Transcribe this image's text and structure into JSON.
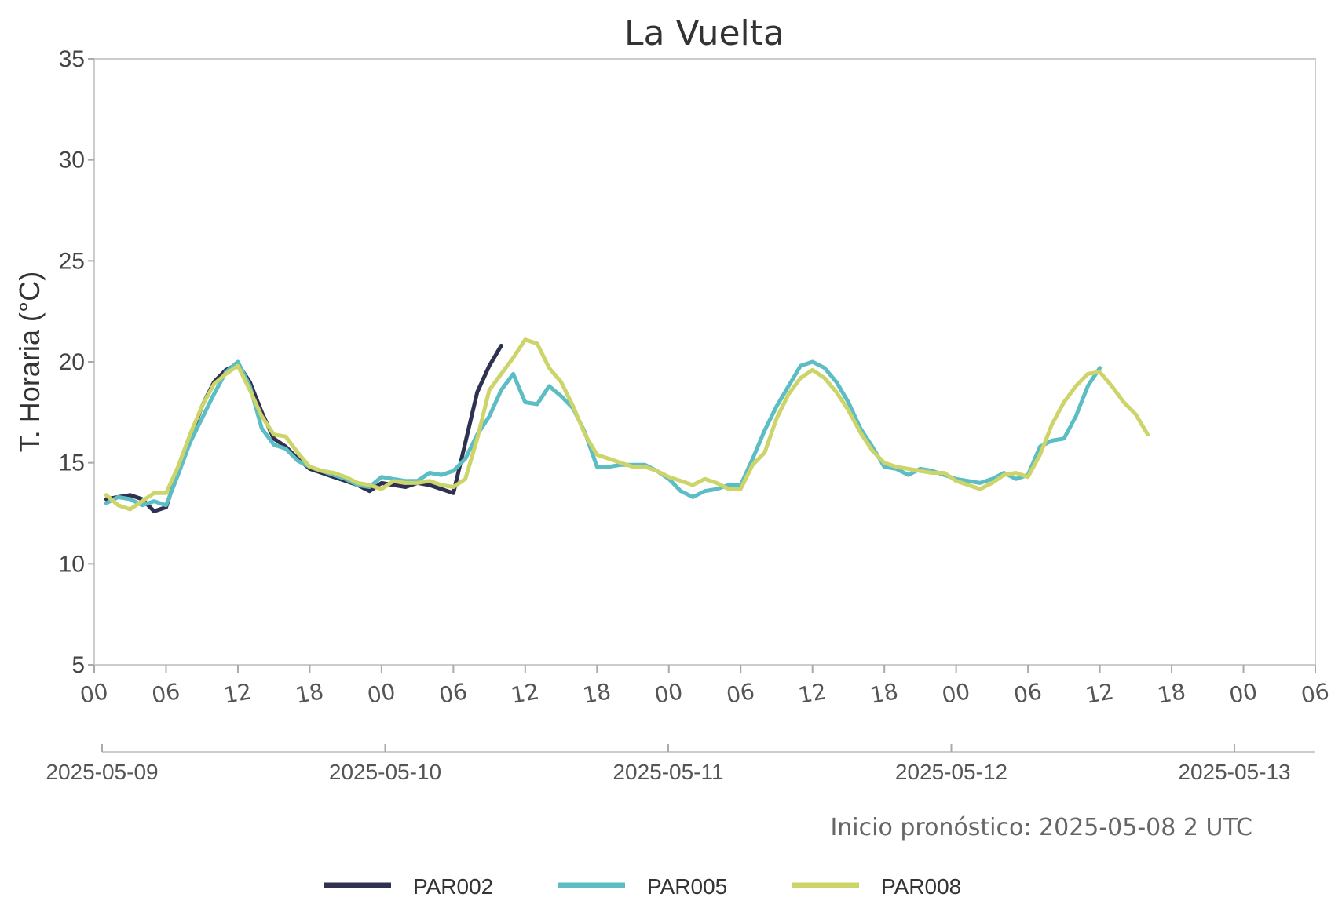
{
  "chart_data": {
    "type": "line",
    "title": "La Vuelta",
    "ylabel": "T. Horaria (°C)",
    "xlabel": "",
    "ylim": [
      5,
      35
    ],
    "yticks": [
      "5",
      "10",
      "15",
      "20",
      "25",
      "30",
      "35"
    ],
    "xlim_hours": [
      0,
      102
    ],
    "hour_ticks": [
      "00",
      "06",
      "12",
      "18",
      "00",
      "06",
      "12",
      "18",
      "00",
      "06",
      "12",
      "18",
      "00",
      "06",
      "12",
      "18",
      "00",
      "06"
    ],
    "date_ticks": [
      "2025-05-09",
      "2025-05-10",
      "2025-05-11",
      "2025-05-12",
      "2025-05-13"
    ],
    "note": "Inicio pronóstico: 2025-05-08 2 UTC",
    "grid": false,
    "legend_position": "bottom",
    "series": [
      {
        "name": "PAR002",
        "color": "#2e3150",
        "x": [
          1,
          2,
          3,
          4,
          5,
          6,
          7,
          8,
          9,
          10,
          11,
          12,
          13,
          14,
          15,
          16,
          17,
          18,
          19,
          20,
          21,
          22,
          23,
          24,
          25,
          26,
          27,
          28,
          29,
          30,
          31,
          32,
          33,
          34,
          35
        ],
        "y": [
          13.2,
          13.3,
          13.4,
          13.2,
          12.6,
          12.8,
          14.6,
          16.2,
          17.8,
          19.0,
          19.6,
          19.9,
          19.0,
          17.5,
          16.2,
          15.8,
          15.2,
          14.7,
          14.5,
          14.3,
          14.1,
          13.9,
          13.6,
          14.0,
          13.9,
          13.8,
          14.0,
          13.9,
          13.7,
          13.5,
          16.0,
          18.5,
          19.8,
          20.8,
          null
        ]
      },
      {
        "name": "PAR005",
        "color": "#5dbdc5",
        "x": [
          1,
          2,
          3,
          4,
          5,
          6,
          7,
          8,
          9,
          10,
          11,
          12,
          13,
          14,
          15,
          16,
          17,
          18,
          19,
          20,
          21,
          22,
          23,
          24,
          25,
          26,
          27,
          28,
          29,
          30,
          31,
          32,
          33,
          34,
          35,
          36,
          37,
          38,
          39,
          40,
          41,
          42,
          43,
          44,
          45,
          46,
          47,
          48,
          49,
          50,
          51,
          52,
          53,
          54,
          55,
          56,
          57,
          58,
          59,
          60,
          61,
          62,
          63,
          64,
          65,
          66,
          67,
          68,
          69,
          70,
          71,
          72,
          73,
          74,
          75,
          76,
          77,
          78,
          79,
          80,
          81,
          82,
          83,
          84,
          85,
          86,
          87,
          88
        ],
        "y": [
          13.0,
          13.3,
          13.2,
          12.9,
          13.1,
          12.9,
          14.4,
          16.0,
          17.2,
          18.4,
          19.5,
          20.0,
          18.8,
          16.7,
          15.9,
          15.7,
          15.1,
          14.8,
          14.6,
          14.4,
          14.2,
          13.9,
          13.8,
          14.3,
          14.2,
          14.1,
          14.1,
          14.5,
          14.4,
          14.6,
          15.2,
          16.4,
          17.3,
          18.6,
          19.4,
          18.0,
          17.9,
          18.8,
          18.3,
          17.7,
          16.5,
          14.8,
          14.8,
          14.9,
          14.9,
          14.9,
          14.6,
          14.2,
          13.6,
          13.3,
          13.6,
          13.7,
          13.9,
          13.9,
          15.2,
          16.6,
          17.8,
          18.8,
          19.8,
          20.0,
          19.7,
          19.0,
          18.0,
          16.7,
          15.8,
          14.8,
          14.7,
          14.4,
          14.7,
          14.6,
          14.4,
          14.2,
          14.1,
          14.0,
          14.2,
          14.5,
          14.2,
          14.4,
          15.8,
          16.1,
          16.2,
          17.3,
          18.8,
          19.7,
          null,
          null,
          null,
          null
        ]
      },
      {
        "name": "PAR008",
        "color": "#cdd46a",
        "x": [
          1,
          2,
          3,
          4,
          5,
          6,
          7,
          8,
          9,
          10,
          11,
          12,
          13,
          14,
          15,
          16,
          17,
          18,
          19,
          20,
          21,
          22,
          23,
          24,
          25,
          26,
          27,
          28,
          29,
          30,
          31,
          32,
          33,
          34,
          35,
          36,
          37,
          38,
          39,
          40,
          41,
          42,
          43,
          44,
          45,
          46,
          47,
          48,
          49,
          50,
          51,
          52,
          53,
          54,
          55,
          56,
          57,
          58,
          59,
          60,
          61,
          62,
          63,
          64,
          65,
          66,
          67,
          68,
          69,
          70,
          71,
          72,
          73,
          74,
          75,
          76,
          77,
          78,
          79,
          80,
          81,
          82,
          83,
          84,
          85,
          86,
          87,
          88
        ],
        "y": [
          13.4,
          12.9,
          12.7,
          13.1,
          13.5,
          13.5,
          14.8,
          16.4,
          17.8,
          18.9,
          19.4,
          19.8,
          18.6,
          17.3,
          16.4,
          16.3,
          15.5,
          14.8,
          14.6,
          14.5,
          14.3,
          14.0,
          13.9,
          13.7,
          14.1,
          14.0,
          14.0,
          14.1,
          13.9,
          13.8,
          14.2,
          16.2,
          18.6,
          19.4,
          20.2,
          21.1,
          20.9,
          19.7,
          19.0,
          17.8,
          16.4,
          15.4,
          15.2,
          15.0,
          14.8,
          14.8,
          14.6,
          14.3,
          14.1,
          13.9,
          14.2,
          14.0,
          13.7,
          13.7,
          14.9,
          15.5,
          17.2,
          18.4,
          19.2,
          19.6,
          19.2,
          18.5,
          17.6,
          16.5,
          15.6,
          15.0,
          14.8,
          14.7,
          14.6,
          14.5,
          14.5,
          14.1,
          13.9,
          13.7,
          14.0,
          14.4,
          14.5,
          14.3,
          15.4,
          16.9,
          18.0,
          18.8,
          19.4,
          19.5,
          18.8,
          18.0,
          17.4,
          16.4
        ]
      }
    ]
  }
}
